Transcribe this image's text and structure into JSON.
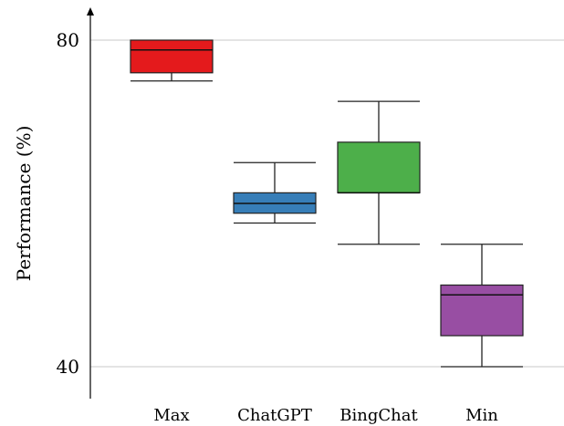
{
  "chart_data": {
    "type": "box",
    "title": "",
    "xlabel": "",
    "ylabel": "Performance (%)",
    "ylim": [
      39,
      83.5
    ],
    "yticks": [
      "40",
      "80"
    ],
    "grid": true,
    "categories": [
      "Max",
      "ChatGPT",
      "BingChat",
      "Min"
    ],
    "boxes": [
      {
        "name": "Max",
        "min": 75,
        "q1": 76,
        "median": 78.8,
        "q3": 80,
        "max": 80,
        "color": "#e41a1c"
      },
      {
        "name": "ChatGPT",
        "min": 57.6,
        "q1": 58.8,
        "median": 60,
        "q3": 61.3,
        "max": 65,
        "color": "#377eb8"
      },
      {
        "name": "BingChat",
        "min": 55,
        "q1": 61.3,
        "median": 61.3,
        "q3": 67.5,
        "max": 72.5,
        "color": "#4daf4a"
      },
      {
        "name": "Min",
        "min": 40,
        "q1": 43.8,
        "median": 48.8,
        "q3": 50,
        "max": 55,
        "color": "#984ea3"
      }
    ]
  }
}
